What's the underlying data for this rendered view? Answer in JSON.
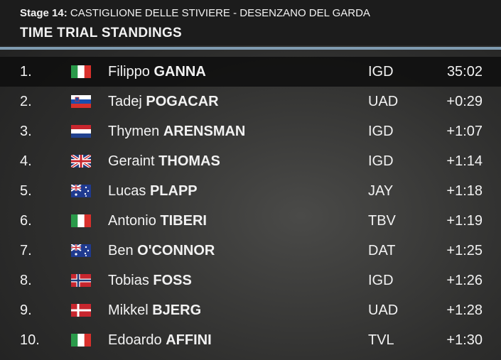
{
  "header": {
    "stage_label": "Stage 14:",
    "route": "CASTIGLIONE DELLE STIVIERE - DESENZANO DEL GARDA",
    "title": "TIME TRIAL STANDINGS"
  },
  "table": {
    "rows": [
      [
        "1.",
        "Filippo",
        "GANNA",
        "IGD",
        "35:02"
      ],
      [
        "2.",
        "Tadej",
        "POGACAR",
        "UAD",
        "+0:29"
      ],
      [
        "3.",
        "Thymen",
        "ARENSMAN",
        "IGD",
        "+1:07"
      ],
      [
        "4.",
        "Geraint",
        "THOMAS",
        "IGD",
        "+1:14"
      ],
      [
        "5.",
        "Lucas",
        "PLAPP",
        "JAY",
        "+1:18"
      ],
      [
        "6.",
        "Antonio",
        "TIBERI",
        "TBV",
        "+1:19"
      ],
      [
        "7.",
        "Ben",
        "O'CONNOR",
        "DAT",
        "+1:25"
      ],
      [
        "8.",
        "Tobias",
        "FOSS",
        "IGD",
        "+1:26"
      ],
      [
        "9.",
        "Mikkel",
        "BJERG",
        "UAD",
        "+1:28"
      ],
      [
        "10.",
        "Edoardo",
        "AFFINI",
        "TVL",
        "+1:30"
      ]
    ]
  }
}
